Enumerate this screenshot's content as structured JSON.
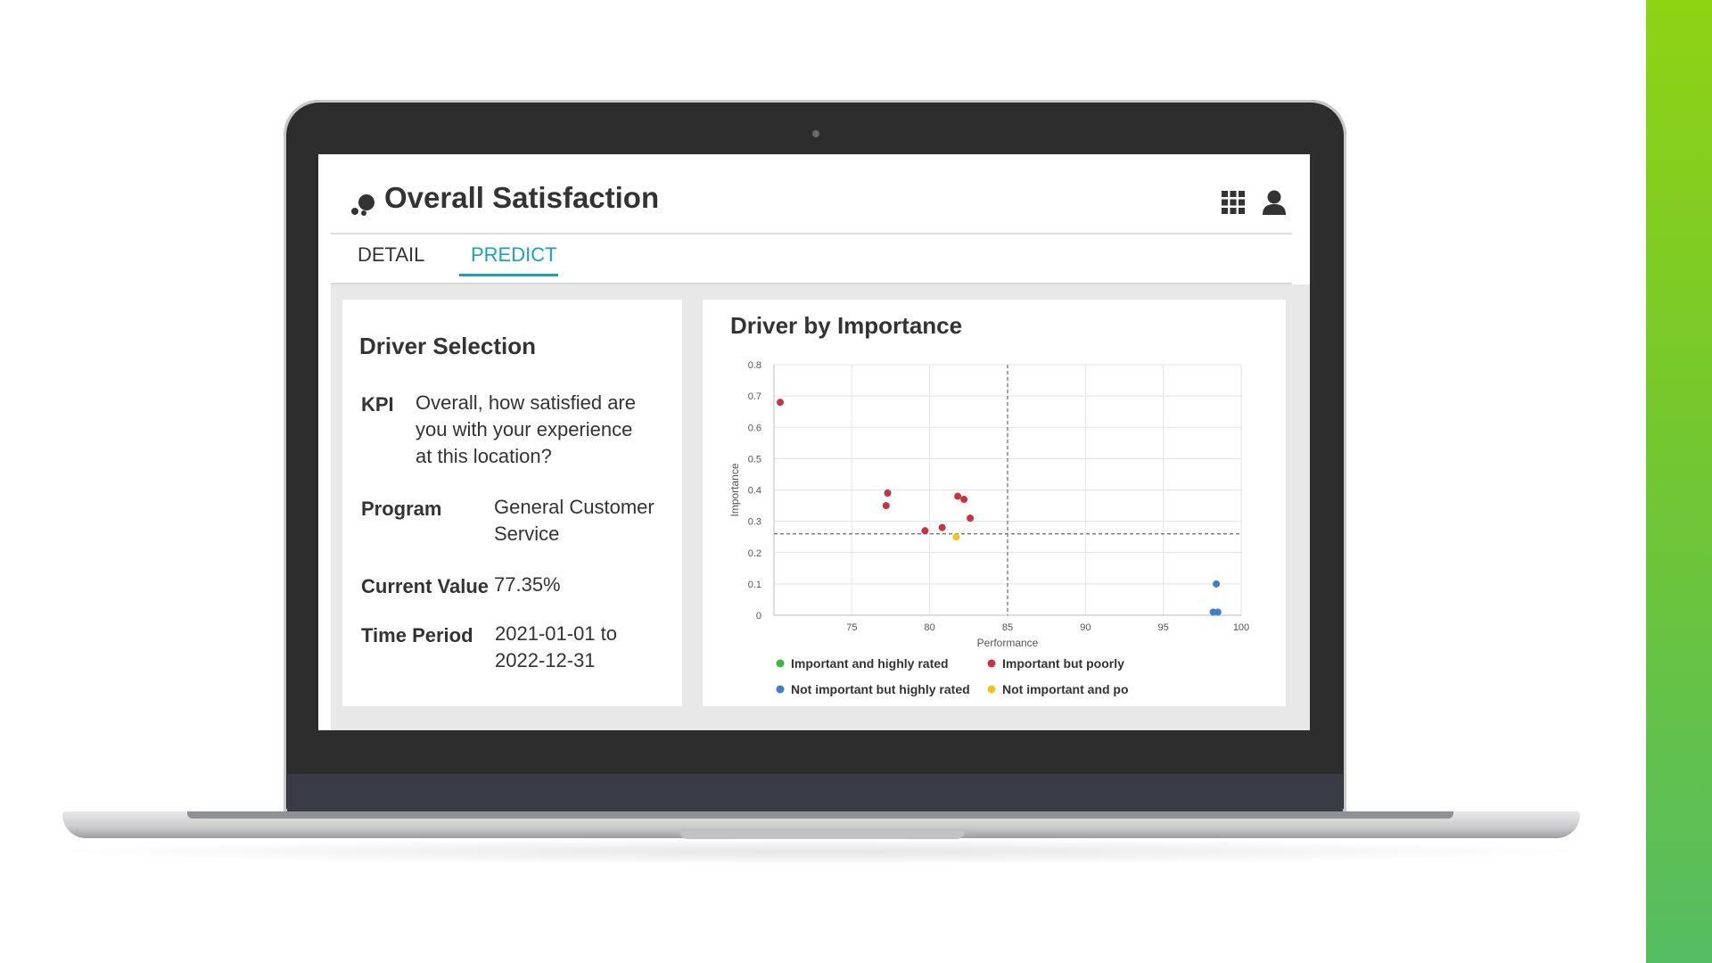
{
  "app": {
    "title": "Overall Satisfaction"
  },
  "tabs": [
    {
      "label": "DETAIL",
      "active": false
    },
    {
      "label": "PREDICT",
      "active": true
    }
  ],
  "driver_selection": {
    "title": "Driver Selection",
    "kpi_label": "KPI",
    "kpi_value_lines": [
      "Overall, how satisfied  are",
      "you with your experience",
      "at this location?"
    ],
    "program_label": "Program",
    "program_value_lines": [
      "General Customer",
      "Service"
    ],
    "current_value_label": "Current Value",
    "current_value": "77.35%",
    "time_period_label": "Time Period",
    "time_period_lines": [
      "2021-01-01 to",
      "2022-12-31"
    ]
  },
  "colors": {
    "accent": "#18a2b8",
    "green": "#3bb54a",
    "red": "#c9323f",
    "blue": "#3f7fcf",
    "yellow": "#f2c31b"
  },
  "icons": [
    "logo-icon",
    "grid-icon",
    "user-icon"
  ],
  "chart_data": {
    "type": "scatter",
    "title": "Driver by Importance",
    "xlabel": "Performance",
    "ylabel": "Importance",
    "xlim": [
      70,
      100
    ],
    "ylim": [
      0,
      0.8
    ],
    "x_ticks": [
      "75",
      "80",
      "85",
      "90",
      "95",
      "100"
    ],
    "y_ticks": [
      "0",
      "0.1",
      "0.2",
      "0.3",
      "0.4",
      "0.5",
      "0.6",
      "0.7",
      "0.8"
    ],
    "grid": true,
    "reference_lines": {
      "x": 85,
      "y": 0.26
    },
    "legend_placement": "bottom",
    "series": [
      {
        "name": "Important and highly rated",
        "color": "#3bb54a",
        "points": []
      },
      {
        "name": "Important but poorly",
        "color": "#c9323f",
        "points": [
          [
            70.4,
            0.68
          ],
          [
            77.3,
            0.39
          ],
          [
            77.2,
            0.35
          ],
          [
            79.7,
            0.27
          ],
          [
            80.8,
            0.28
          ],
          [
            81.8,
            0.38
          ],
          [
            82.2,
            0.37
          ],
          [
            82.6,
            0.31
          ]
        ]
      },
      {
        "name": "Not important but highly rated",
        "color": "#3f7fcf",
        "points": [
          [
            98.4,
            0.1
          ],
          [
            98.2,
            0.01
          ],
          [
            98.5,
            0.01
          ]
        ]
      },
      {
        "name": "Not important and po",
        "color": "#f2c31b",
        "points": [
          [
            81.7,
            0.25
          ]
        ]
      }
    ]
  }
}
